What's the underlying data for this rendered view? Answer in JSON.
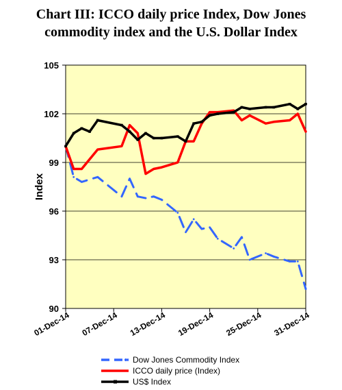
{
  "title_line1": "Chart III:  ICCO daily price Index, Dow Jones",
  "title_line2": "commodity index and the U.S. Dollar Index",
  "chart_data": {
    "type": "line",
    "ylabel": "Index",
    "xlabel": "",
    "ylim": [
      90,
      105
    ],
    "yticks": [
      90,
      93,
      96,
      99,
      102,
      105
    ],
    "x_range": [
      1,
      31
    ],
    "xticks": [
      {
        "x": 1,
        "label": "01-Dec-14"
      },
      {
        "x": 7,
        "label": "07-Dec-14"
      },
      {
        "x": 13,
        "label": "13-Dec-14"
      },
      {
        "x": 19,
        "label": "19-Dec-14"
      },
      {
        "x": 25,
        "label": "25-Dec-14"
      },
      {
        "x": 31,
        "label": "31-Dec-14"
      }
    ],
    "plot_background": "#FFFFC0",
    "grid": "horizontal",
    "legend_position": "bottom",
    "series": [
      {
        "name": "Dow Jones Commodity Index",
        "color": "#3366FF",
        "style": "dashed",
        "marker": "diamond",
        "x": [
          1,
          2,
          3,
          5,
          8,
          9,
          10,
          11,
          12,
          13,
          15,
          16,
          17,
          18,
          19,
          20,
          22,
          23,
          24,
          26,
          27,
          29,
          30,
          31
        ],
        "y": [
          100.0,
          98.1,
          97.8,
          98.1,
          96.9,
          98.0,
          96.9,
          96.8,
          96.9,
          96.7,
          95.9,
          94.7,
          95.5,
          94.9,
          95.0,
          94.3,
          93.7,
          94.4,
          93.0,
          93.4,
          93.2,
          92.9,
          92.9,
          91.2
        ]
      },
      {
        "name": "ICCO daily price (Index)",
        "color": "#FF0000",
        "style": "solid",
        "marker": "none",
        "x": [
          1,
          2,
          3,
          5,
          8,
          9,
          10,
          11,
          12,
          13,
          15,
          16,
          17,
          18,
          19,
          20,
          22,
          23,
          24,
          26,
          27,
          29,
          30,
          31
        ],
        "y": [
          100.0,
          98.6,
          98.6,
          99.8,
          100.0,
          101.3,
          100.8,
          98.3,
          98.6,
          98.7,
          99.0,
          100.3,
          100.3,
          101.4,
          102.1,
          102.1,
          102.2,
          101.6,
          101.9,
          101.4,
          101.5,
          101.6,
          102.0,
          100.9
        ]
      },
      {
        "name": "US$ Index",
        "color": "#000000",
        "style": "solid",
        "marker": "square",
        "x": [
          1,
          2,
          3,
          4,
          5,
          8,
          9,
          10,
          11,
          12,
          13,
          15,
          16,
          17,
          18,
          19,
          20,
          22,
          23,
          24,
          26,
          27,
          29,
          30,
          31
        ],
        "y": [
          100.0,
          100.8,
          101.1,
          100.9,
          101.6,
          101.3,
          100.9,
          100.4,
          100.8,
          100.5,
          100.5,
          100.6,
          100.3,
          101.4,
          101.5,
          101.9,
          102.0,
          102.1,
          102.4,
          102.3,
          102.4,
          102.4,
          102.6,
          102.3,
          102.6
        ]
      }
    ]
  }
}
